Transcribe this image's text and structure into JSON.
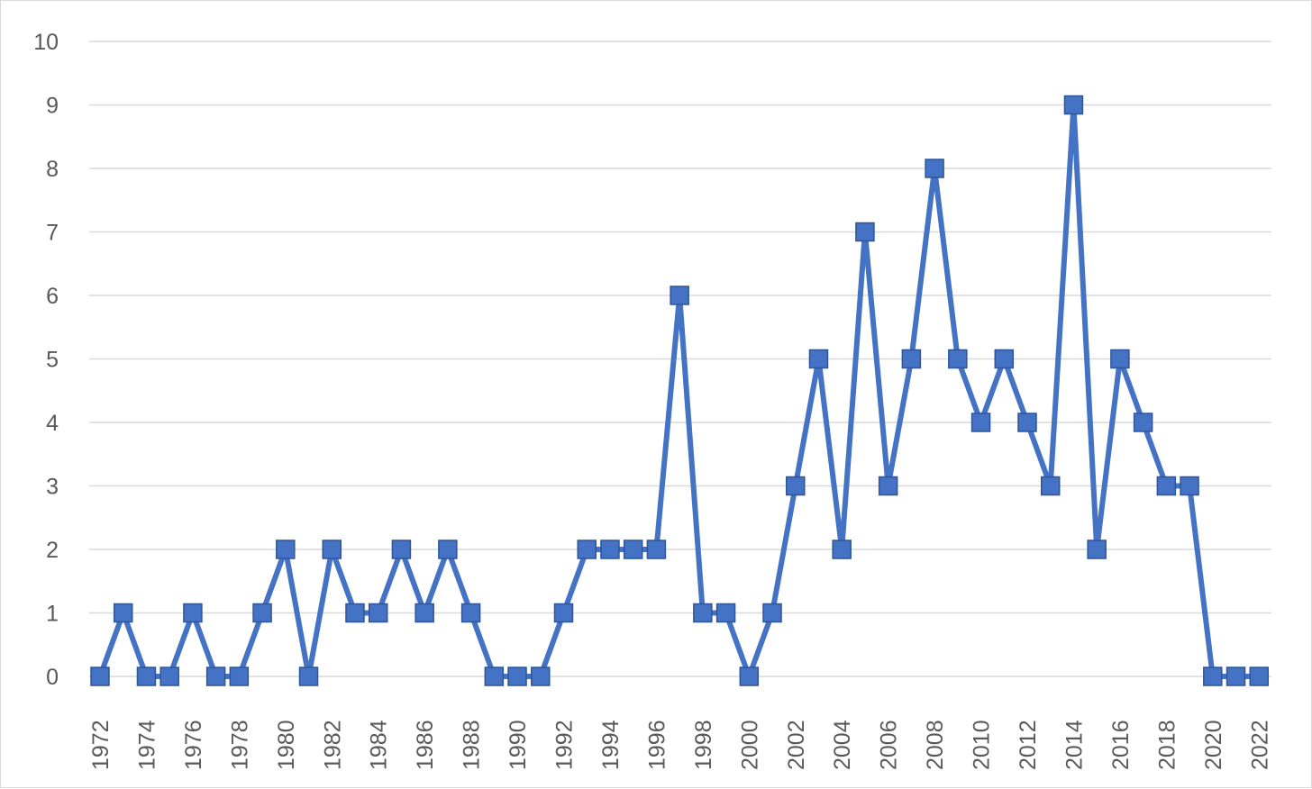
{
  "chart_data": {
    "type": "line",
    "title": "",
    "xlabel": "",
    "ylabel": "",
    "ylim": [
      0,
      10
    ],
    "y_ticks": [
      "0",
      "1",
      "2",
      "3",
      "4",
      "5",
      "6",
      "7",
      "8",
      "9",
      "10"
    ],
    "x_tick_labels": [
      "1972",
      "1974",
      "1976",
      "1978",
      "1980",
      "1982",
      "1984",
      "1986",
      "1988",
      "1990",
      "1992",
      "1994",
      "1996",
      "1998",
      "2000",
      "2002",
      "2004",
      "2006",
      "2008",
      "2010",
      "2012",
      "2014",
      "2016",
      "2018",
      "2020",
      "2022"
    ],
    "grid": true,
    "legend": "none",
    "marker": "square",
    "color": "#4472c4",
    "gridline_color": "#d9d9d9",
    "label_color": "#595959",
    "categories": [
      "1972",
      "1973",
      "1974",
      "1975",
      "1976",
      "1977",
      "1978",
      "1979",
      "1980",
      "1981",
      "1982",
      "1983",
      "1984",
      "1985",
      "1986",
      "1987",
      "1988",
      "1989",
      "1990",
      "1991",
      "1992",
      "1993",
      "1994",
      "1995",
      "1996",
      "1997",
      "1998",
      "1999",
      "2000",
      "2001",
      "2002",
      "2003",
      "2004",
      "2005",
      "2006",
      "2007",
      "2008",
      "2009",
      "2010",
      "2011",
      "2012",
      "2013",
      "2014",
      "2015",
      "2016",
      "2017",
      "2018",
      "2019",
      "2020",
      "2021",
      "2022"
    ],
    "series": [
      {
        "values": [
          0,
          1,
          0,
          0,
          1,
          0,
          0,
          1,
          2,
          0,
          2,
          1,
          1,
          2,
          1,
          2,
          1,
          0,
          0,
          0,
          1,
          2,
          2,
          2,
          2,
          6,
          1,
          1,
          0,
          1,
          3,
          5,
          2,
          7,
          3,
          5,
          8,
          5,
          4,
          5,
          4,
          3,
          9,
          2,
          5,
          4,
          3,
          3,
          0,
          0,
          0
        ]
      }
    ]
  }
}
